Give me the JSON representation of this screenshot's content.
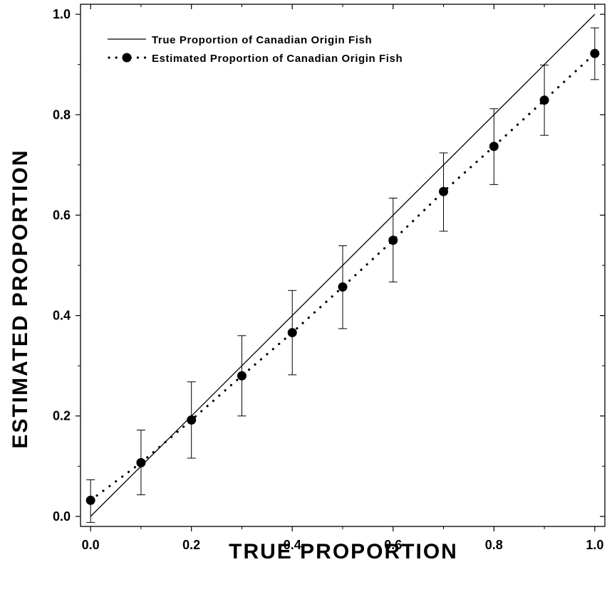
{
  "chart_data": {
    "type": "scatter",
    "title": "",
    "xlabel": "TRUE PROPORTION",
    "ylabel": "ESTIMATED PROPORTION",
    "xlim": [
      -0.02,
      1.02
    ],
    "ylim": [
      -0.02,
      1.02
    ],
    "x_ticks": [
      "0.0",
      "0.2",
      "0.4",
      "0.6",
      "0.8",
      "1.0"
    ],
    "y_ticks": [
      "0.0",
      "0.2",
      "0.4",
      "0.6",
      "0.8",
      "1.0"
    ],
    "grid": false,
    "legend_position": "top-left",
    "series": [
      {
        "name": "True Proportion of Canadian Origin Fish",
        "style": "solid line",
        "x": [
          0.0,
          1.0
        ],
        "y": [
          0.0,
          1.0
        ]
      },
      {
        "name": "Estimated Proportion of Canadian Origin Fish",
        "style": "dotted line with filled circle markers and error bars",
        "x": [
          0.0,
          0.1,
          0.2,
          0.3,
          0.4,
          0.5,
          0.6,
          0.7,
          0.8,
          0.9,
          1.0
        ],
        "y": [
          0.032,
          0.107,
          0.192,
          0.28,
          0.366,
          0.457,
          0.55,
          0.647,
          0.737,
          0.829,
          0.922
        ],
        "error_low": [
          -0.012,
          0.043,
          0.116,
          0.2,
          0.282,
          0.374,
          0.467,
          0.568,
          0.661,
          0.759,
          0.87
        ],
        "error_high": [
          0.073,
          0.172,
          0.268,
          0.36,
          0.45,
          0.539,
          0.634,
          0.724,
          0.812,
          0.899,
          0.973
        ]
      }
    ],
    "colors": {
      "line": "#000000",
      "marker": "#000000",
      "background": "#ffffff"
    }
  }
}
